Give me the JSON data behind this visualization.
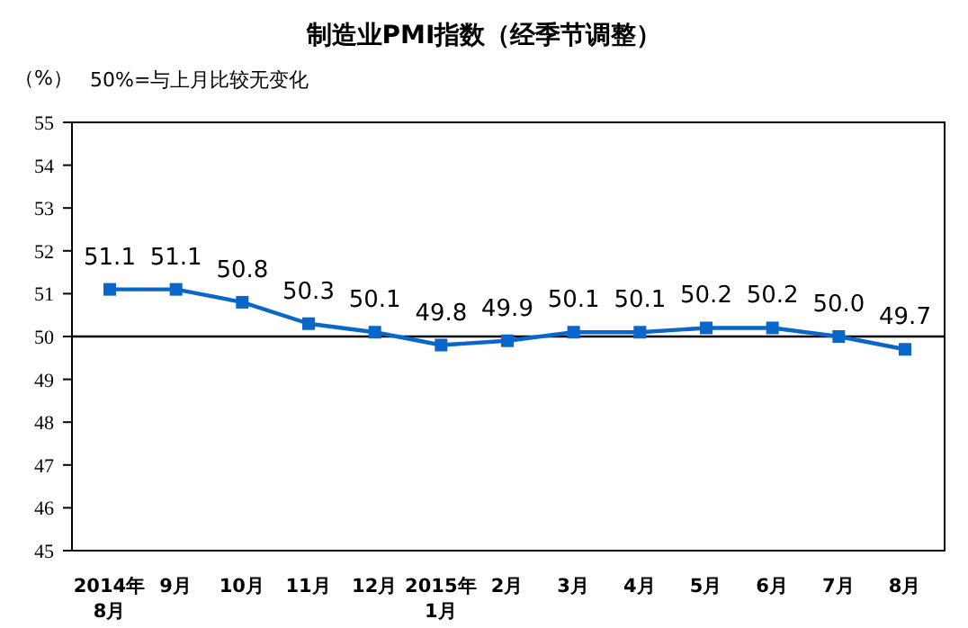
{
  "chart_data": {
    "type": "line",
    "title": "制造业PMI指数（经季节调整）",
    "ylabel": "（%）",
    "annotations": [
      "50%=与上月比较无变化"
    ],
    "categories": [
      "2014年\n8月",
      "9月",
      "10月",
      "11月",
      "12月",
      "2015年\n1月",
      "2月",
      "3月",
      "4月",
      "5月",
      "6月",
      "7月",
      "8月"
    ],
    "series": [
      {
        "color": "#0a66c8",
        "values": [
          51.1,
          51.1,
          50.8,
          50.3,
          50.1,
          49.8,
          49.9,
          50.1,
          50.1,
          50.2,
          50.2,
          50.0,
          49.7
        ],
        "value_labels": [
          "51.1",
          "51.1",
          "50.8",
          "50.3",
          "50.1",
          "49.8",
          "49.9",
          "50.1",
          "50.1",
          "50.2",
          "50.2",
          "50.0",
          "49.7"
        ]
      }
    ],
    "ylim": [
      45,
      55
    ],
    "yticks": [
      45,
      46,
      47,
      48,
      49,
      50,
      51,
      52,
      53,
      54,
      55
    ],
    "ref_lines": [
      {
        "axis": "y",
        "value": 50,
        "color": "#000000"
      }
    ],
    "marker": "square",
    "grid": false
  }
}
